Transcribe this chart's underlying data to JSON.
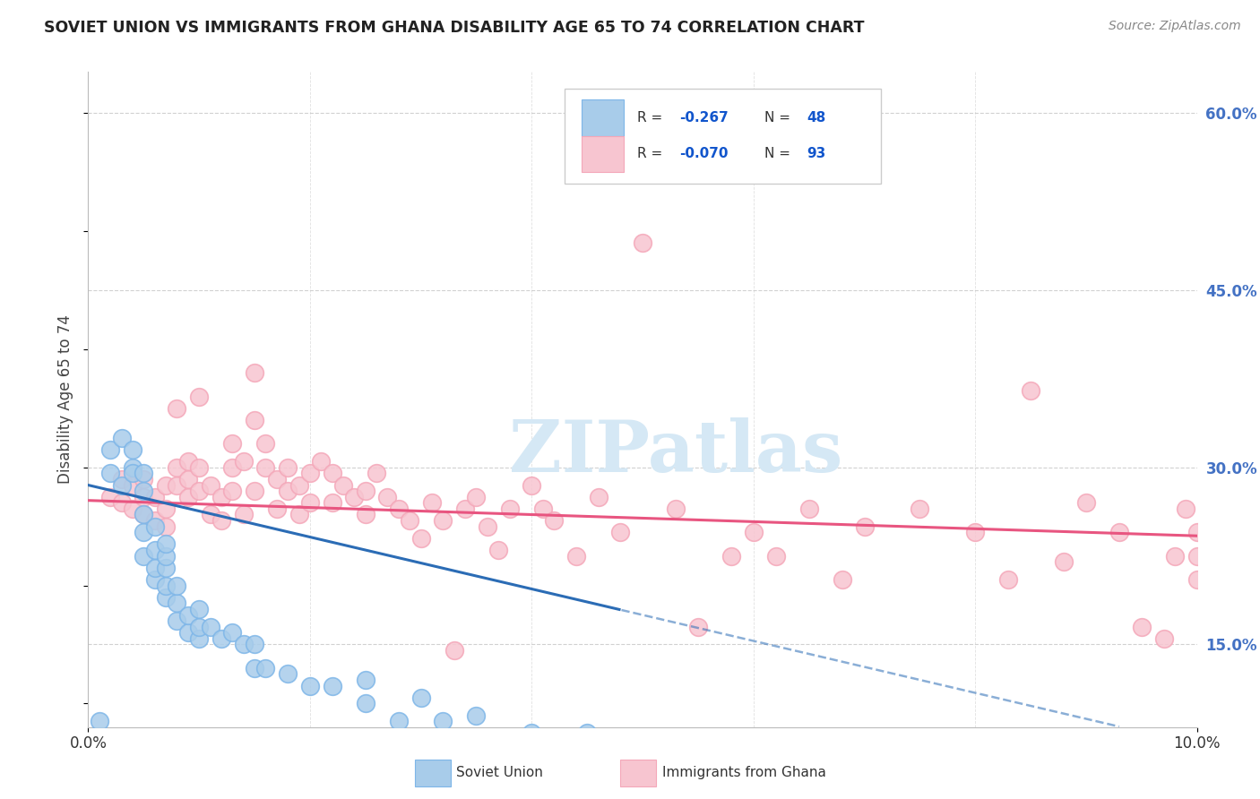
{
  "title": "SOVIET UNION VS IMMIGRANTS FROM GHANA DISABILITY AGE 65 TO 74 CORRELATION CHART",
  "source": "Source: ZipAtlas.com",
  "ylabel": "Disability Age 65 to 74",
  "xlim": [
    0.0,
    0.1
  ],
  "ylim": [
    0.08,
    0.635
  ],
  "ytick_show": [
    0.15,
    0.3,
    0.45,
    0.6
  ],
  "ytick_show_labels": [
    "15.0%",
    "30.0%",
    "45.0%",
    "60.0%"
  ],
  "xtick_positions": [
    0.0,
    0.1
  ],
  "xtick_labels": [
    "0.0%",
    "10.0%"
  ],
  "series1_name": "Soviet Union",
  "series1_R": "-0.267",
  "series1_N": "48",
  "series1_color": "#A8CCEA",
  "series1_edge_color": "#7EB6E8",
  "series1_line_color": "#2B6CB5",
  "series2_name": "Immigrants from Ghana",
  "series2_R": "-0.070",
  "series2_N": "93",
  "series2_color": "#F7C5D0",
  "series2_edge_color": "#F4A7B9",
  "series2_line_color": "#E85580",
  "legend_text_color": "#1155CC",
  "background_color": "#FFFFFF",
  "grid_color": "#CCCCCC",
  "right_tick_color": "#4472C4",
  "watermark_text": "ZIPatlas",
  "watermark_color": "#D5E8F5",
  "title_color": "#222222",
  "source_color": "#888888",
  "ylabel_color": "#444444",
  "soviet_x": [
    0.001,
    0.002,
    0.002,
    0.003,
    0.003,
    0.004,
    0.004,
    0.004,
    0.005,
    0.005,
    0.005,
    0.005,
    0.005,
    0.006,
    0.006,
    0.006,
    0.006,
    0.007,
    0.007,
    0.007,
    0.007,
    0.007,
    0.008,
    0.008,
    0.008,
    0.009,
    0.009,
    0.01,
    0.01,
    0.01,
    0.011,
    0.012,
    0.013,
    0.014,
    0.015,
    0.015,
    0.016,
    0.018,
    0.02,
    0.022,
    0.025,
    0.025,
    0.028,
    0.03,
    0.032,
    0.035,
    0.04,
    0.045
  ],
  "soviet_y": [
    0.085,
    0.295,
    0.315,
    0.285,
    0.325,
    0.3,
    0.315,
    0.295,
    0.225,
    0.245,
    0.26,
    0.28,
    0.295,
    0.205,
    0.215,
    0.23,
    0.25,
    0.19,
    0.2,
    0.215,
    0.225,
    0.235,
    0.17,
    0.185,
    0.2,
    0.16,
    0.175,
    0.155,
    0.165,
    0.18,
    0.165,
    0.155,
    0.16,
    0.15,
    0.13,
    0.15,
    0.13,
    0.125,
    0.115,
    0.115,
    0.1,
    0.12,
    0.085,
    0.105,
    0.085,
    0.09,
    0.075,
    0.075
  ],
  "ghana_x": [
    0.002,
    0.003,
    0.003,
    0.004,
    0.004,
    0.005,
    0.005,
    0.005,
    0.006,
    0.006,
    0.007,
    0.007,
    0.007,
    0.008,
    0.008,
    0.008,
    0.009,
    0.009,
    0.009,
    0.01,
    0.01,
    0.01,
    0.011,
    0.011,
    0.012,
    0.012,
    0.013,
    0.013,
    0.013,
    0.014,
    0.014,
    0.015,
    0.015,
    0.015,
    0.016,
    0.016,
    0.017,
    0.017,
    0.018,
    0.018,
    0.019,
    0.019,
    0.02,
    0.02,
    0.021,
    0.022,
    0.022,
    0.023,
    0.024,
    0.025,
    0.025,
    0.026,
    0.027,
    0.028,
    0.029,
    0.03,
    0.031,
    0.032,
    0.033,
    0.034,
    0.035,
    0.036,
    0.037,
    0.038,
    0.04,
    0.041,
    0.042,
    0.044,
    0.046,
    0.048,
    0.05,
    0.053,
    0.055,
    0.058,
    0.06,
    0.062,
    0.065,
    0.068,
    0.07,
    0.075,
    0.08,
    0.083,
    0.085,
    0.088,
    0.09,
    0.093,
    0.095,
    0.097,
    0.098,
    0.099,
    0.1,
    0.1,
    0.1
  ],
  "ghana_y": [
    0.275,
    0.27,
    0.29,
    0.265,
    0.285,
    0.26,
    0.275,
    0.29,
    0.255,
    0.275,
    0.25,
    0.265,
    0.285,
    0.35,
    0.3,
    0.285,
    0.275,
    0.29,
    0.305,
    0.36,
    0.28,
    0.3,
    0.26,
    0.285,
    0.255,
    0.275,
    0.32,
    0.28,
    0.3,
    0.26,
    0.305,
    0.38,
    0.34,
    0.28,
    0.3,
    0.32,
    0.265,
    0.29,
    0.28,
    0.3,
    0.26,
    0.285,
    0.27,
    0.295,
    0.305,
    0.27,
    0.295,
    0.285,
    0.275,
    0.26,
    0.28,
    0.295,
    0.275,
    0.265,
    0.255,
    0.24,
    0.27,
    0.255,
    0.145,
    0.265,
    0.275,
    0.25,
    0.23,
    0.265,
    0.285,
    0.265,
    0.255,
    0.225,
    0.275,
    0.245,
    0.49,
    0.265,
    0.165,
    0.225,
    0.245,
    0.225,
    0.265,
    0.205,
    0.25,
    0.265,
    0.245,
    0.205,
    0.365,
    0.22,
    0.27,
    0.245,
    0.165,
    0.155,
    0.225,
    0.265,
    0.225,
    0.205,
    0.245
  ],
  "trend1_x0": 0.0,
  "trend1_y0": 0.285,
  "trend1_slope": -2.2,
  "trend1_solid_end": 0.048,
  "trend2_x0": 0.0,
  "trend2_y0": 0.272,
  "trend2_slope": -0.3
}
